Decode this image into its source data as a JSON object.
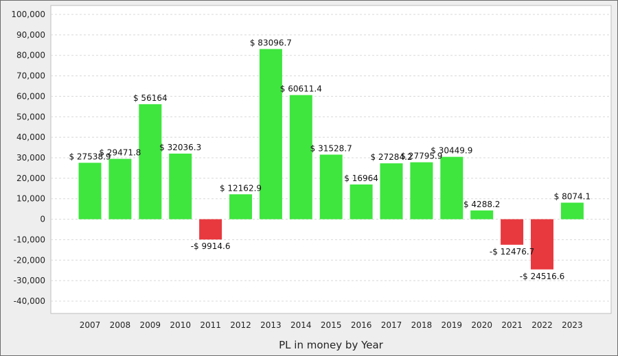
{
  "chart_data": {
    "type": "bar",
    "title": "",
    "xlabel": "PL in money by Year",
    "ylabel": "",
    "ylim": [
      -45000,
      100000
    ],
    "yticks": [
      100000,
      90000,
      80000,
      70000,
      60000,
      50000,
      40000,
      30000,
      20000,
      10000,
      0,
      -10000,
      -20000,
      -30000,
      -40000
    ],
    "ytick_labels": [
      "100,000",
      "90,000",
      "80,000",
      "70,000",
      "60,000",
      "50,000",
      "40,000",
      "30,000",
      "20,000",
      "10,000",
      "0",
      "-10,000",
      "-20,000",
      "-30,000",
      "-40,000"
    ],
    "categories": [
      "2007",
      "2008",
      "2009",
      "2010",
      "2011",
      "2012",
      "2013",
      "2014",
      "2015",
      "2016",
      "2017",
      "2018",
      "2019",
      "2020",
      "2021",
      "2022",
      "2023"
    ],
    "values": [
      27538.9,
      29471.8,
      56164,
      32036.3,
      -9914.6,
      12162.9,
      83096.7,
      60611.4,
      31528.7,
      16964,
      27284.2,
      27795.9,
      30449.9,
      4288.2,
      -12476.7,
      -24516.6,
      8074.1
    ],
    "data_labels": [
      "$ 27538.9",
      "$ 29471.8",
      "$ 56164",
      "$ 32036.3",
      "-$ 9914.6",
      "$ 12162.9",
      "$ 83096.7",
      "$ 60611.4",
      "$ 31528.7",
      "$ 16964",
      "$ 27284.2",
      "$ 27795.9",
      "$ 30449.9",
      "$ 4288.2",
      "-$ 12476.7",
      "-$ 24516.6",
      "$ 8074.1"
    ],
    "colors": {
      "positive": "#3ee63e",
      "negative": "#e8393f",
      "plot_background": "#ffffff",
      "grid": "#d8d8d8"
    },
    "grid": true,
    "legend": "none"
  }
}
